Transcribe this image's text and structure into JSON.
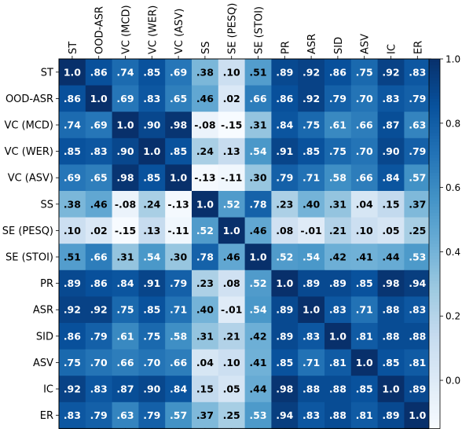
{
  "chart_data": {
    "type": "heatmap",
    "title": "",
    "xlabel": "",
    "ylabel": "",
    "labels": [
      "ST",
      "OOD-ASR",
      "VC (MCD)",
      "VC (WER)",
      "VC (ASV)",
      "SS",
      "SE (PESQ)",
      "SE (STOI)",
      "PR",
      "ASR",
      "SID",
      "ASV",
      "IC",
      "ER"
    ],
    "cell_text": [
      [
        "1.0",
        ".86",
        ".74",
        ".85",
        ".69",
        ".38",
        ".10",
        ".51",
        ".89",
        ".92",
        ".86",
        ".75",
        ".92",
        ".83"
      ],
      [
        ".86",
        "1.0",
        ".69",
        ".83",
        ".65",
        ".46",
        ".02",
        ".66",
        ".86",
        ".92",
        ".79",
        ".70",
        ".83",
        ".79"
      ],
      [
        ".74",
        ".69",
        "1.0",
        ".90",
        ".98",
        "-.08",
        "-.15",
        ".31",
        ".84",
        ".75",
        ".61",
        ".66",
        ".87",
        ".63"
      ],
      [
        ".85",
        ".83",
        ".90",
        "1.0",
        ".85",
        ".24",
        ".13",
        ".54",
        ".91",
        ".85",
        ".75",
        ".70",
        ".90",
        ".79"
      ],
      [
        ".69",
        ".65",
        ".98",
        ".85",
        "1.0",
        "-.13",
        "-.11",
        ".30",
        ".79",
        ".71",
        ".58",
        ".66",
        ".84",
        ".57"
      ],
      [
        ".38",
        ".46",
        "-.08",
        ".24",
        "-.13",
        "1.0",
        ".52",
        ".78",
        ".23",
        ".40",
        ".31",
        ".04",
        ".15",
        ".37"
      ],
      [
        ".10",
        ".02",
        "-.15",
        ".13",
        "-.11",
        ".52",
        "1.0",
        ".46",
        ".08",
        "-.01",
        ".21",
        ".10",
        ".05",
        ".25"
      ],
      [
        ".51",
        ".66",
        ".31",
        ".54",
        ".30",
        ".78",
        ".46",
        "1.0",
        ".52",
        ".54",
        ".42",
        ".41",
        ".44",
        ".53"
      ],
      [
        ".89",
        ".86",
        ".84",
        ".91",
        ".79",
        ".23",
        ".08",
        ".52",
        "1.0",
        ".89",
        ".89",
        ".85",
        ".98",
        ".94"
      ],
      [
        ".92",
        ".92",
        ".75",
        ".85",
        ".71",
        ".40",
        "-.01",
        ".54",
        ".89",
        "1.0",
        ".83",
        ".71",
        ".88",
        ".83"
      ],
      [
        ".86",
        ".79",
        ".61",
        ".75",
        ".58",
        ".31",
        ".21",
        ".42",
        ".89",
        ".83",
        "1.0",
        ".81",
        ".88",
        ".88"
      ],
      [
        ".75",
        ".70",
        ".66",
        ".70",
        ".66",
        ".04",
        ".10",
        ".41",
        ".85",
        ".71",
        ".81",
        "1.0",
        ".85",
        ".81"
      ],
      [
        ".92",
        ".83",
        ".87",
        ".90",
        ".84",
        ".15",
        ".05",
        ".44",
        ".98",
        ".88",
        ".88",
        ".85",
        "1.0",
        ".89"
      ],
      [
        ".83",
        ".79",
        ".63",
        ".79",
        ".57",
        ".37",
        ".25",
        ".53",
        ".94",
        ".83",
        ".88",
        ".81",
        ".89",
        "1.0"
      ]
    ],
    "colorbar": {
      "ticks": [
        "0.0",
        "0.2",
        "0.4",
        "0.6",
        "0.8",
        "1.0"
      ],
      "range": [
        -0.15,
        1.0
      ],
      "colormap": "Blues"
    },
    "grid": false,
    "legend": "colorbar-right",
    "colors": {
      "low": "#f7fbff",
      "high": "#08306b"
    }
  }
}
